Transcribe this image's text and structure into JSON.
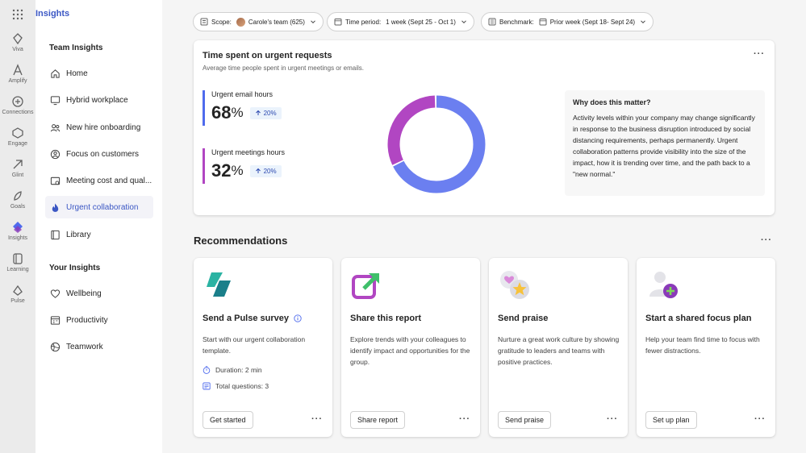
{
  "app": {
    "title": "Insights"
  },
  "rail": [
    {
      "label": "Viva",
      "icon": "viva-icon"
    },
    {
      "label": "Amplify",
      "icon": "amplify-icon"
    },
    {
      "label": "Connections",
      "icon": "connections-icon"
    },
    {
      "label": "Engage",
      "icon": "engage-icon"
    },
    {
      "label": "Glint",
      "icon": "glint-icon"
    },
    {
      "label": "Goals",
      "icon": "goals-icon"
    },
    {
      "label": "Insights",
      "icon": "insights-icon"
    },
    {
      "label": "Learning",
      "icon": "learning-icon"
    },
    {
      "label": "Pulse",
      "icon": "pulse-icon"
    }
  ],
  "nav": {
    "team_heading": "Team Insights",
    "team_items": [
      {
        "label": "Home",
        "icon": "home-icon"
      },
      {
        "label": "Hybrid workplace",
        "icon": "monitor-icon"
      },
      {
        "label": "New hire onboarding",
        "icon": "people-icon"
      },
      {
        "label": "Focus on customers",
        "icon": "customer-icon"
      },
      {
        "label": "Meeting cost and qual...",
        "icon": "meeting-icon"
      },
      {
        "label": "Urgent collaboration",
        "icon": "flame-icon"
      },
      {
        "label": "Library",
        "icon": "library-icon"
      }
    ],
    "your_heading": "Your Insights",
    "your_items": [
      {
        "label": "Wellbeing",
        "icon": "heart-icon"
      },
      {
        "label": "Productivity",
        "icon": "calendar-icon"
      },
      {
        "label": "Teamwork",
        "icon": "teamwork-icon"
      }
    ]
  },
  "filters": {
    "scope_label": "Scope:",
    "scope_value": "Carole's team (625)",
    "time_label": "Time period:",
    "time_value": "1 week (Sept 25 - Oct 1)",
    "bench_label": "Benchmark:",
    "bench_value": "Prior week (Sept 18- Sept 24)"
  },
  "main": {
    "title": "Time spent on urgent requests",
    "subtitle": "Average time people spent in urgent meetings or emails.",
    "metrics": [
      {
        "label": "Urgent email hours",
        "value": "68",
        "unit": "%",
        "delta": "20%",
        "color": "#4f6bed"
      },
      {
        "label": "Urgent meetings hours",
        "value": "32",
        "unit": "%",
        "delta": "20%",
        "color": "#b146c2"
      }
    ],
    "donut": {
      "email_share": 68,
      "meetings_share": 32
    },
    "why_title": "Why does this matter?",
    "why_body": "Activity levels within your company may change significantly in response to the business disruption introduced by social distancing requirements, perhaps permanently. Urgent collaboration patterns provide visibility into the size of the impact, how it is trending over time, and the path back to a \"new normal.\""
  },
  "recommendations": {
    "title": "Recommendations",
    "cards": [
      {
        "title": "Send a Pulse survey",
        "body": "Start with our urgent collaboration template.",
        "duration": "Duration: 2 min",
        "questions": "Total questions: 3",
        "button": "Get started"
      },
      {
        "title": "Share this report",
        "body": "Explore trends with your colleagues to identify impact and opportunities for the group.",
        "button": "Share report"
      },
      {
        "title": "Send praise",
        "body": "Nurture a great work culture by showing gratitude to leaders and teams with positive practices.",
        "button": "Send praise"
      },
      {
        "title": "Start a shared focus plan",
        "body": "Help your team find time to focus with fewer distractions.",
        "button": "Set up plan"
      }
    ]
  }
}
